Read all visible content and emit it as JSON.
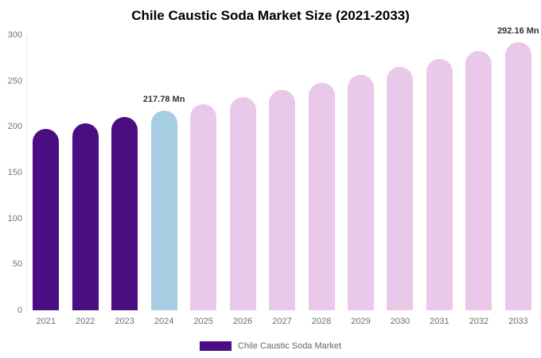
{
  "chart_data": {
    "type": "bar",
    "title": "Chile Caustic Soda Market Size (2021-2033)",
    "categories": [
      "2021",
      "2022",
      "2023",
      "2024",
      "2025",
      "2026",
      "2027",
      "2028",
      "2029",
      "2030",
      "2031",
      "2032",
      "2033"
    ],
    "values": [
      197.5,
      204.0,
      210.8,
      217.78,
      225.0,
      232.5,
      240.2,
      248.2,
      256.4,
      264.9,
      273.7,
      282.7,
      292.16
    ],
    "segments": [
      "past",
      "past",
      "past",
      "current",
      "forecast",
      "forecast",
      "forecast",
      "forecast",
      "forecast",
      "forecast",
      "forecast",
      "forecast",
      "forecast"
    ],
    "value_labels": {
      "3": "217.78 Mn",
      "12": "292.16 Mn"
    },
    "ylim": [
      0,
      300
    ],
    "yticks": [
      0,
      50,
      100,
      150,
      200,
      250,
      300
    ],
    "grid": false,
    "xlabel": "",
    "ylabel": "",
    "legend": {
      "position": "bottom",
      "label": "Chile Caustic Soda Market"
    },
    "colors": {
      "past": "#4a0d82",
      "current": "#a7cde3",
      "forecast": "#e9c8ea",
      "axis_text": "#757575",
      "value_label": "#333333",
      "title_text": "#000000"
    }
  }
}
